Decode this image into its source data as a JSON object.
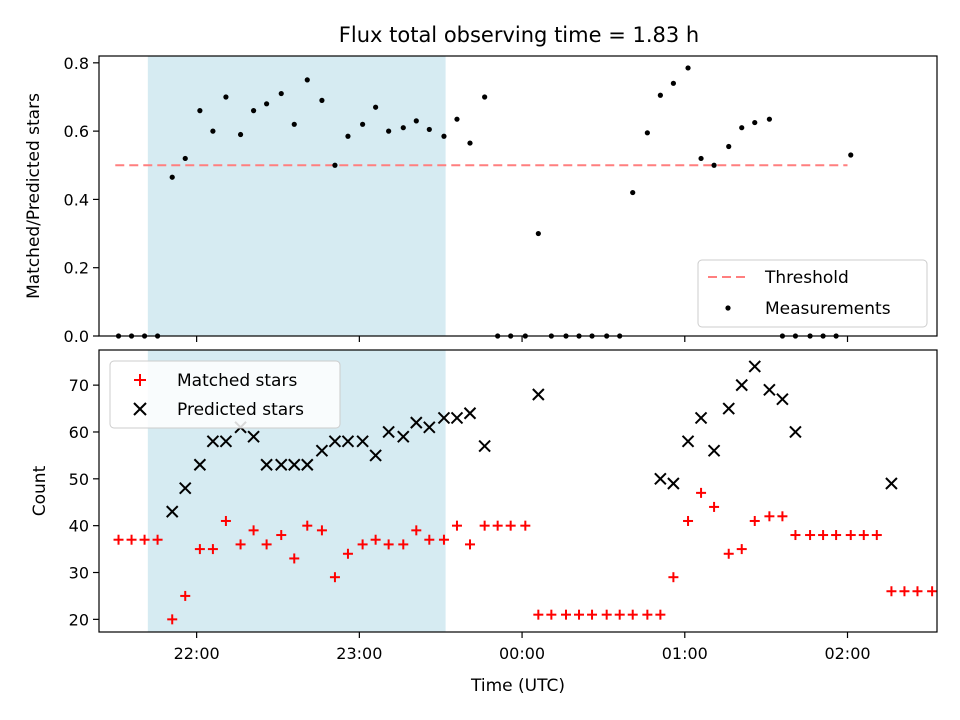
{
  "chart_data": [
    {
      "type": "scatter",
      "title": "Flux total observing time = 1.83 h",
      "xlabel": "",
      "ylabel": "Matched/Predicted stars",
      "ylim": [
        0,
        0.82
      ],
      "yticks": [
        0.0,
        0.2,
        0.4,
        0.6,
        0.8
      ],
      "ytick_labels": [
        "0.0",
        "0.2",
        "0.4",
        "0.6",
        "0.8"
      ],
      "xlim_hours": [
        21.4,
        26.55
      ],
      "xticks_hours": [
        22,
        23,
        24,
        25,
        26
      ],
      "xtick_labels": [
        "",
        "",
        "",
        "",
        ""
      ],
      "shaded_span_hours": [
        21.7,
        23.53
      ],
      "shaded_color": "#add8e6",
      "threshold": {
        "name": "Threshold",
        "value": 0.5,
        "x_range_hours": [
          21.5,
          26.0
        ],
        "color": "#ff7f7f",
        "style": "dashed"
      },
      "legend": {
        "placement": "lower-right",
        "entries": [
          "Threshold",
          "Measurements"
        ]
      },
      "series": [
        {
          "name": "Measurements",
          "color": "#000000",
          "marker": "dot",
          "x_hours": [
            21.52,
            21.6,
            21.68,
            21.76,
            21.85,
            21.93,
            22.02,
            22.1,
            22.18,
            22.27,
            22.35,
            22.43,
            22.52,
            22.6,
            22.68,
            22.77,
            22.85,
            22.93,
            23.02,
            23.1,
            23.18,
            23.27,
            23.35,
            23.43,
            23.52,
            23.6,
            23.68,
            23.77,
            23.85,
            23.93,
            24.02,
            24.1,
            24.18,
            24.27,
            24.35,
            24.43,
            24.52,
            24.6,
            24.68,
            24.77,
            24.85,
            24.93,
            25.02,
            25.1,
            25.18,
            25.27,
            25.35,
            25.43,
            25.52,
            25.6,
            25.68,
            25.77,
            25.85,
            25.93,
            26.02
          ],
          "y": [
            0.0,
            0.0,
            0.0,
            0.0,
            0.465,
            0.52,
            0.66,
            0.6,
            0.7,
            0.59,
            0.66,
            0.68,
            0.71,
            0.62,
            0.75,
            0.69,
            0.5,
            0.585,
            0.62,
            0.67,
            0.6,
            0.61,
            0.63,
            0.605,
            0.585,
            0.635,
            0.565,
            0.7,
            0.0,
            0.0,
            0.0,
            0.3,
            0.0,
            0.0,
            0.0,
            0.0,
            0.0,
            0.0,
            0.42,
            0.595,
            0.705,
            0.74,
            0.785,
            0.52,
            0.5,
            0.555,
            0.61,
            0.625,
            0.635,
            0.0,
            0.0,
            0.0,
            0.0,
            0.0,
            0.53
          ]
        }
      ]
    },
    {
      "type": "scatter",
      "title": "",
      "xlabel": "Time (UTC)",
      "ylabel": "Count",
      "ylim": [
        17.3,
        77.5
      ],
      "yticks": [
        20,
        30,
        40,
        50,
        60,
        70
      ],
      "ytick_labels": [
        "20",
        "30",
        "40",
        "50",
        "60",
        "70"
      ],
      "xlim_hours": [
        21.4,
        26.55
      ],
      "xticks_hours": [
        22,
        23,
        24,
        25,
        26
      ],
      "xtick_labels": [
        "22:00",
        "23:00",
        "00:00",
        "01:00",
        "02:00"
      ],
      "shaded_span_hours": [
        21.7,
        23.53
      ],
      "shaded_color": "#add8e6",
      "legend": {
        "placement": "upper-left",
        "entries": [
          "Matched stars",
          "Predicted stars"
        ]
      },
      "series": [
        {
          "name": "Matched stars",
          "color": "#ff0000",
          "marker": "plus",
          "points": [
            [
              21.52,
              37
            ],
            [
              21.6,
              37
            ],
            [
              21.68,
              37
            ],
            [
              21.76,
              37
            ],
            [
              21.85,
              20
            ],
            [
              21.93,
              25
            ],
            [
              22.02,
              35
            ],
            [
              22.1,
              35
            ],
            [
              22.18,
              41
            ],
            [
              22.27,
              36
            ],
            [
              22.35,
              39
            ],
            [
              22.43,
              36
            ],
            [
              22.52,
              38
            ],
            [
              22.6,
              33
            ],
            [
              22.68,
              40
            ],
            [
              22.77,
              39
            ],
            [
              22.85,
              29
            ],
            [
              22.93,
              34
            ],
            [
              23.02,
              36
            ],
            [
              23.1,
              37
            ],
            [
              23.18,
              36
            ],
            [
              23.27,
              36
            ],
            [
              23.35,
              39
            ],
            [
              23.43,
              37
            ],
            [
              23.52,
              37
            ],
            [
              23.6,
              40
            ],
            [
              23.68,
              36
            ],
            [
              23.77,
              40
            ],
            [
              23.85,
              40
            ],
            [
              23.93,
              40
            ],
            [
              24.02,
              40
            ],
            [
              24.1,
              21
            ],
            [
              24.18,
              21
            ],
            [
              24.27,
              21
            ],
            [
              24.35,
              21
            ],
            [
              24.43,
              21
            ],
            [
              24.52,
              21
            ],
            [
              24.6,
              21
            ],
            [
              24.68,
              21
            ],
            [
              24.77,
              21
            ],
            [
              24.85,
              21
            ],
            [
              24.93,
              29
            ],
            [
              25.02,
              41
            ],
            [
              25.1,
              47
            ],
            [
              25.18,
              44
            ],
            [
              25.27,
              34
            ],
            [
              25.35,
              35
            ],
            [
              25.43,
              41
            ],
            [
              25.52,
              42
            ],
            [
              25.6,
              42
            ],
            [
              25.68,
              38
            ],
            [
              25.77,
              38
            ],
            [
              25.85,
              38
            ],
            [
              25.93,
              38
            ],
            [
              26.02,
              38
            ],
            [
              26.1,
              38
            ],
            [
              26.18,
              38
            ],
            [
              26.27,
              26
            ],
            [
              26.35,
              26
            ],
            [
              26.43,
              26
            ],
            [
              26.52,
              26
            ]
          ]
        },
        {
          "name": "Predicted stars",
          "color": "#000000",
          "marker": "x",
          "points": [
            [
              21.85,
              43
            ],
            [
              21.93,
              48
            ],
            [
              22.02,
              53
            ],
            [
              22.1,
              58
            ],
            [
              22.18,
              58
            ],
            [
              22.27,
              61
            ],
            [
              22.35,
              59
            ],
            [
              22.43,
              53
            ],
            [
              22.52,
              53
            ],
            [
              22.6,
              53
            ],
            [
              22.68,
              53
            ],
            [
              22.77,
              56
            ],
            [
              22.85,
              58
            ],
            [
              22.93,
              58
            ],
            [
              23.02,
              58
            ],
            [
              23.1,
              55
            ],
            [
              23.18,
              60
            ],
            [
              23.27,
              59
            ],
            [
              23.35,
              62
            ],
            [
              23.43,
              61
            ],
            [
              23.52,
              63
            ],
            [
              23.6,
              63
            ],
            [
              23.68,
              64
            ],
            [
              23.77,
              57
            ],
            [
              24.1,
              68
            ],
            [
              24.85,
              50
            ],
            [
              24.93,
              49
            ],
            [
              25.02,
              58
            ],
            [
              25.1,
              63
            ],
            [
              25.18,
              56
            ],
            [
              25.27,
              65
            ],
            [
              25.35,
              70
            ],
            [
              25.43,
              74
            ],
            [
              25.52,
              69
            ],
            [
              25.6,
              67
            ],
            [
              25.68,
              60
            ],
            [
              26.27,
              49
            ]
          ]
        }
      ]
    }
  ]
}
